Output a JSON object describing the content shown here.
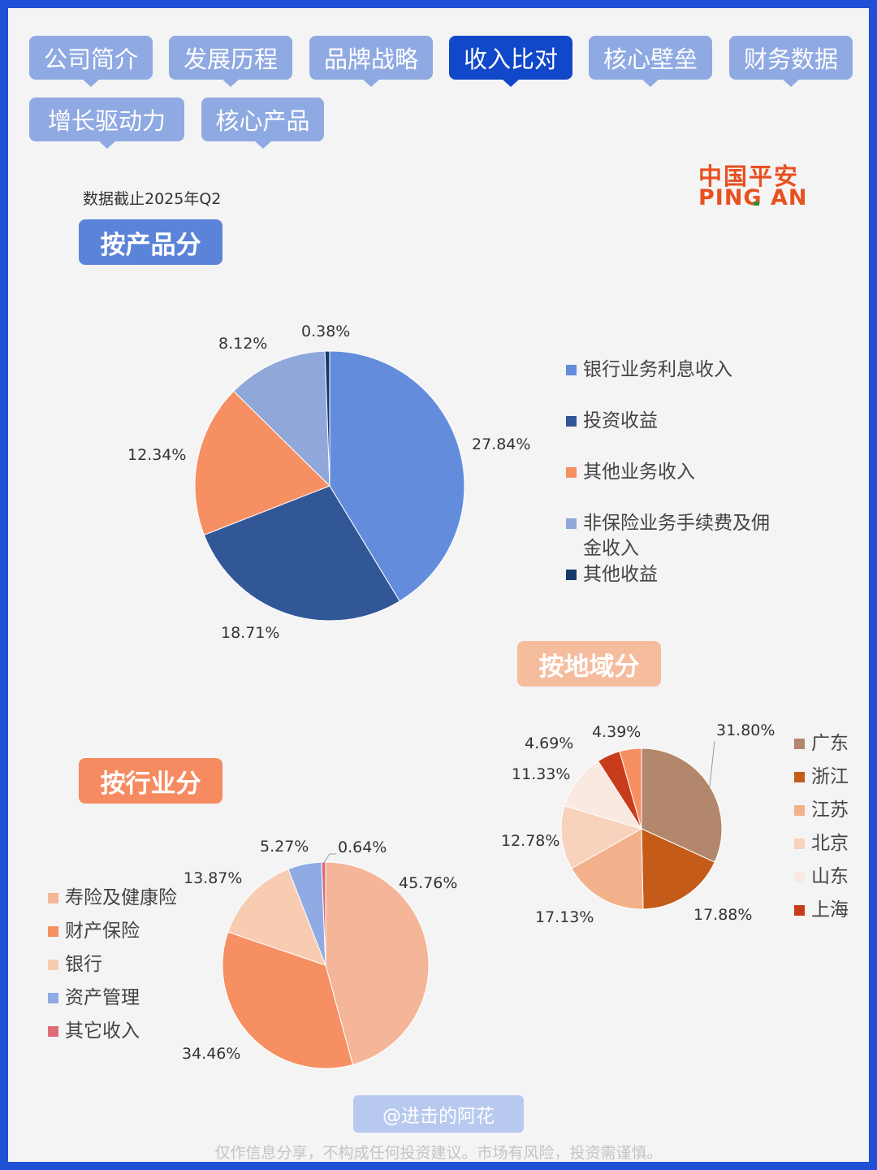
{
  "tabs": [
    {
      "label": "公司简介",
      "active": false
    },
    {
      "label": "发展历程",
      "active": false
    },
    {
      "label": "品牌战略",
      "active": false
    },
    {
      "label": "收入比对",
      "active": true
    },
    {
      "label": "核心壁垒",
      "active": false
    },
    {
      "label": "财务数据",
      "active": false
    },
    {
      "label": "增长驱动力",
      "active": false
    },
    {
      "label": "核心产品",
      "active": false
    }
  ],
  "as_of": "数据截止2025年Q2",
  "logo": {
    "cn": "中国平安",
    "en": "PING AN"
  },
  "colors": {
    "frame": "#1f50d6",
    "tab": "#8fa9e2",
    "tab_active": "#1147c9"
  },
  "chart_data": [
    {
      "type": "pie",
      "title": "按产品分",
      "title_color": "#5b84d8",
      "series": [
        {
          "name": "银行业务利息收入",
          "value": 27.84,
          "color": "#638ddc"
        },
        {
          "name": "投资收益",
          "value": 18.71,
          "color": "#315797"
        },
        {
          "name": "其他业务收入",
          "value": 12.34,
          "color": "#f68f62"
        },
        {
          "name": "非保险业务手续费及佣金收入",
          "value": 8.12,
          "color": "#8fa8d9"
        },
        {
          "name": "其他收益",
          "value": 0.38,
          "color": "#173a6b"
        }
      ],
      "legend": [
        "银行业务利息收入",
        "投资收益",
        "其他业务收入",
        "非保险业务手续费及佣\n金收入",
        "其他收益"
      ],
      "data_labels": [
        "27.84%",
        "18.71%",
        "12.34%",
        "8.12%",
        "0.38%"
      ],
      "legend_position": "right"
    },
    {
      "type": "pie",
      "title": "按地域分",
      "title_color": "#f5bc9d",
      "series": [
        {
          "name": "广东",
          "value": 31.8,
          "color": "#b3876b"
        },
        {
          "name": "浙江",
          "value": 17.88,
          "color": "#c55b19"
        },
        {
          "name": "江苏",
          "value": 17.13,
          "color": "#f3b18b"
        },
        {
          "name": "北京",
          "value": 12.78,
          "color": "#f8d2bc"
        },
        {
          "name": "山东",
          "value": 11.33,
          "color": "#f9e9e0"
        },
        {
          "name": "上海",
          "value": 4.69,
          "color": "#c83c1c"
        },
        {
          "name": "",
          "value": 4.39,
          "color": "#f68f62"
        }
      ],
      "legend": [
        "广东",
        "浙江",
        "江苏",
        "北京",
        "山东",
        "上海"
      ],
      "data_labels": [
        "31.80%",
        "17.88%",
        "17.13%",
        "12.78%",
        "11.33%",
        "4.69%",
        "4.39%"
      ],
      "legend_position": "right"
    },
    {
      "type": "pie",
      "title": "按行业分",
      "title_color": "#f68a60",
      "series": [
        {
          "name": "寿险及健康险",
          "value": 45.76,
          "color": "#f5b598"
        },
        {
          "name": "财产保险",
          "value": 34.46,
          "color": "#f68f62"
        },
        {
          "name": "银行",
          "value": 13.87,
          "color": "#f8ccb1"
        },
        {
          "name": "资产管理",
          "value": 5.27,
          "color": "#90aae3"
        },
        {
          "name": "其它收入",
          "value": 0.64,
          "color": "#dc6d78"
        }
      ],
      "legend": [
        "寿险及健康险",
        "财产保险",
        "银行",
        "资产管理",
        "其它收入"
      ],
      "data_labels": [
        "45.76%",
        "34.46%",
        "13.87%",
        "5.27%",
        "0.64%"
      ],
      "legend_position": "left"
    }
  ],
  "watermark": "@进击的阿花",
  "disclaimer": "仅作信息分享，不构成任何投资建议。市场有风险，投资需谨慎。"
}
